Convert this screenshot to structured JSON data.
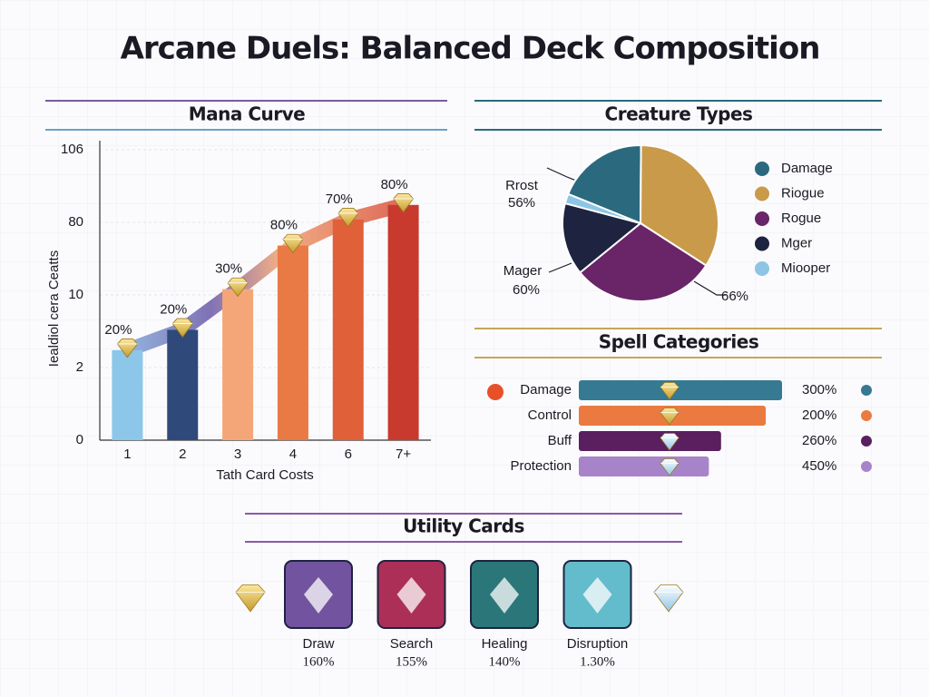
{
  "title": "Arcane Duels: Balanced Deck Composition",
  "chart_data": [
    {
      "type": "bar",
      "title": "Mana Curve",
      "categories": [
        "1",
        "2",
        "3",
        "4",
        "6",
        "7+"
      ],
      "values": [
        31,
        38,
        52,
        67,
        76,
        81
      ],
      "colors": [
        "#8cc6e8",
        "#2f4a7a",
        "#f4a679",
        "#ea7a45",
        "#e0603a",
        "#c83a2e"
      ],
      "annotations": [
        "20%",
        "20%",
        "30%",
        "80%",
        "70%",
        "80%"
      ],
      "xlabel": "Tath Card Costs",
      "ylabel": "Iealdiol cera Ceatts",
      "ylim": [
        0,
        100
      ],
      "yticks": [
        0,
        {
          "value": 25,
          "label": "2"
        },
        {
          "value": 50,
          "label": "10"
        },
        {
          "value": 75,
          "label": "80"
        },
        {
          "value": 100,
          "label": "106"
        }
      ],
      "grid": true
    },
    {
      "type": "pie",
      "title": "Creature Types",
      "categories": [
        "Damage",
        "Riogue",
        "Rogue",
        "Mger",
        "Miooper"
      ],
      "values": [
        19,
        34,
        30,
        15,
        2
      ],
      "colors": [
        "#2b6a7e",
        "#c99a4a",
        "#6a2468",
        "#1e2340",
        "#8ec5e6"
      ],
      "annotations": [
        "Rrost",
        "56%",
        "Mager",
        "60%",
        "66%"
      ]
    },
    {
      "type": "hbar",
      "title": "Spell Categories",
      "categories": [
        "Damage",
        "Control",
        "Buff",
        "Protection"
      ],
      "values": [
        100,
        92,
        70,
        64
      ],
      "colors": [
        "#357a92",
        "#ea7a40",
        "#5a1f5e",
        "#a784c9"
      ],
      "annotations": [
        "300%",
        "200%",
        "260%",
        "450%"
      ],
      "xlim": [
        0,
        100
      ]
    }
  ],
  "utility_cards": {
    "title": "Utility Cards",
    "items": [
      {
        "label": "Draw",
        "value": "160%",
        "color": "#6a4a9a"
      },
      {
        "label": "Search",
        "value": "155%",
        "color": "#a8244e"
      },
      {
        "label": "Healing",
        "value": "140%",
        "color": "#1f6f72"
      },
      {
        "label": "Disruption",
        "value": "1.30%",
        "color": "#5bb8c8"
      }
    ]
  }
}
